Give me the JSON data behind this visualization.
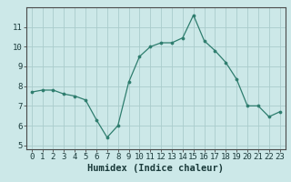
{
  "x": [
    0,
    1,
    2,
    3,
    4,
    5,
    6,
    7,
    8,
    9,
    10,
    11,
    12,
    13,
    14,
    15,
    16,
    17,
    18,
    19,
    20,
    21,
    22,
    23
  ],
  "y": [
    7.7,
    7.8,
    7.8,
    7.6,
    7.5,
    7.3,
    6.3,
    5.4,
    6.0,
    8.2,
    9.5,
    10.0,
    10.2,
    10.2,
    10.45,
    11.6,
    10.3,
    9.8,
    9.2,
    8.35,
    7.0,
    7.0,
    6.45,
    6.7
  ],
  "xlabel": "Humidex (Indice chaleur)",
  "xlim": [
    -0.5,
    23.5
  ],
  "ylim": [
    4.8,
    12.0
  ],
  "yticks": [
    5,
    6,
    7,
    8,
    9,
    10,
    11
  ],
  "xticks": [
    0,
    1,
    2,
    3,
    4,
    5,
    6,
    7,
    8,
    9,
    10,
    11,
    12,
    13,
    14,
    15,
    16,
    17,
    18,
    19,
    20,
    21,
    22,
    23
  ],
  "line_color": "#2e7d6e",
  "marker_color": "#2e7d6e",
  "bg_color": "#cce8e8",
  "grid_color": "#aacccc",
  "axis_color": "#4a4a4a",
  "tick_fontsize": 6.5,
  "xlabel_fontsize": 7.5
}
